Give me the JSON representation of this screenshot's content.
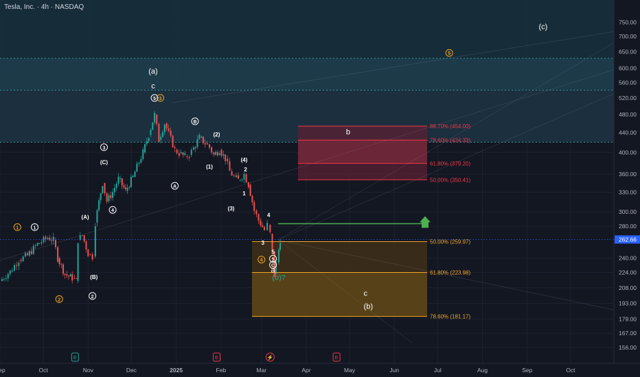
{
  "header": {
    "title": "Tesla, Inc. · 4h · NASDAQ"
  },
  "chart_data": {
    "type": "candlestick",
    "symbol": "Tesla, Inc.",
    "interval": "4h",
    "exchange": "NASDAQ",
    "x_start": "2024-09-01",
    "x_end": "2025-10-31",
    "y_scale": "log",
    "y_range": [
      150,
      750
    ],
    "price_ticks": [
      750,
      700,
      650,
      600,
      560,
      520,
      480,
      440,
      400,
      360,
      330,
      300,
      280,
      240,
      224,
      208,
      193,
      179,
      167,
      156
    ],
    "month_ticks": [
      {
        "date": "2024-09-01",
        "label": "Sep"
      },
      {
        "date": "2024-10-01",
        "label": "Oct"
      },
      {
        "date": "2024-11-01",
        "label": "Nov"
      },
      {
        "date": "2024-12-01",
        "label": "Dec"
      },
      {
        "date": "2025-01-01",
        "label": "2025",
        "bold": true
      },
      {
        "date": "2025-02-01",
        "label": "Feb"
      },
      {
        "date": "2025-03-01",
        "label": "Mar"
      },
      {
        "date": "2025-04-01",
        "label": "Apr"
      },
      {
        "date": "2025-05-01",
        "label": "May"
      },
      {
        "date": "2025-06-01",
        "label": "Jun"
      },
      {
        "date": "2025-07-01",
        "label": "Jul"
      },
      {
        "date": "2025-08-01",
        "label": "Aug"
      },
      {
        "date": "2025-09-01",
        "label": "Sep"
      },
      {
        "date": "2025-10-01",
        "label": "Oct"
      }
    ],
    "current_price": {
      "value": 262.66,
      "label": "262.66",
      "color": "#2962ff"
    },
    "price_series": [
      [
        "2024-09-01",
        215
      ],
      [
        "2024-09-08",
        225
      ],
      [
        "2024-09-14",
        238
      ],
      [
        "2024-09-20",
        243
      ],
      [
        "2024-09-27",
        257
      ],
      [
        "2024-10-04",
        265
      ],
      [
        "2024-10-08",
        262
      ],
      [
        "2024-10-11",
        240
      ],
      [
        "2024-10-16",
        222
      ],
      [
        "2024-10-21",
        218
      ],
      [
        "2024-10-24",
        215
      ],
      [
        "2024-10-25",
        262
      ],
      [
        "2024-10-28",
        268
      ],
      [
        "2024-11-01",
        245
      ],
      [
        "2024-11-04",
        242
      ],
      [
        "2024-11-06",
        285
      ],
      [
        "2024-11-11",
        345
      ],
      [
        "2024-11-14",
        316
      ],
      [
        "2024-11-18",
        330
      ],
      [
        "2024-11-22",
        352
      ],
      [
        "2024-11-27",
        332
      ],
      [
        "2024-12-02",
        355
      ],
      [
        "2024-12-09",
        400
      ],
      [
        "2024-12-13",
        435
      ],
      [
        "2024-12-17",
        480
      ],
      [
        "2024-12-20",
        425
      ],
      [
        "2024-12-24",
        460
      ],
      [
        "2024-12-31",
        405
      ],
      [
        "2025-01-03",
        398
      ],
      [
        "2025-01-07",
        392
      ],
      [
        "2025-01-10",
        395
      ],
      [
        "2025-01-13",
        408
      ],
      [
        "2025-01-17",
        430
      ],
      [
        "2025-01-21",
        418
      ],
      [
        "2025-01-24",
        410
      ],
      [
        "2025-01-27",
        395
      ],
      [
        "2025-01-31",
        405
      ],
      [
        "2025-02-04",
        388
      ],
      [
        "2025-02-07",
        365
      ],
      [
        "2025-02-10",
        355
      ],
      [
        "2025-02-13",
        350
      ],
      [
        "2025-02-17",
        360
      ],
      [
        "2025-02-20",
        342
      ],
      [
        "2025-02-24",
        302
      ],
      [
        "2025-02-27",
        288
      ],
      [
        "2025-03-03",
        275
      ],
      [
        "2025-03-05",
        282
      ],
      [
        "2025-03-07",
        270
      ],
      [
        "2025-03-10",
        222
      ],
      [
        "2025-03-11",
        235
      ],
      [
        "2025-03-13",
        250
      ],
      [
        "2025-03-14",
        262.66
      ]
    ],
    "fibonacci_levels": [
      {
        "label": "88.70% (454.00)",
        "value": 454.0,
        "color": "#f23645"
      },
      {
        "label": "78.60% (424.33)",
        "value": 424.33,
        "color": "#f23645"
      },
      {
        "label": "61.80% (379.20)",
        "value": 379.2,
        "color": "#f23645"
      },
      {
        "label": "50.00% (350.41)",
        "value": 350.41,
        "color": "#f23645"
      },
      {
        "label": "50.00% (259.97)",
        "value": 259.97,
        "color": "#f5a623"
      },
      {
        "label": "61.80% (223.98)",
        "value": 223.98,
        "color": "#f5a623"
      },
      {
        "label": "78.60% (181.17)",
        "value": 181.17,
        "color": "#f5a623"
      }
    ],
    "wave_labels": [
      {
        "text": "(c)",
        "date": "2025-09-12",
        "price": 725,
        "color": "#ffffff"
      },
      {
        "text": "5",
        "date": "2025-07-09",
        "price": 640,
        "color": "#f5a623",
        "circled": true
      },
      {
        "text": "(a)",
        "date": "2024-12-16",
        "price": 585,
        "color": "#ffffff"
      },
      {
        "text": "c",
        "date": "2024-12-16",
        "price": 545,
        "color": "#ffffff"
      },
      {
        "text": "5",
        "date": "2024-12-17",
        "price": 515,
        "color": "#ffffff",
        "circled": true
      },
      {
        "text": "3",
        "date": "2024-12-21",
        "price": 515,
        "color": "#f5a623",
        "circled": true
      },
      {
        "text": "B",
        "date": "2025-01-14",
        "price": 460,
        "color": "#ffffff",
        "circled": true
      },
      {
        "text": "(2)",
        "date": "2025-01-29",
        "price": 432,
        "color": "#ffffff"
      },
      {
        "text": "3",
        "date": "2024-11-12",
        "price": 406,
        "color": "#ffffff",
        "circled": true
      },
      {
        "text": "(C)",
        "date": "2024-11-12",
        "price": 378,
        "color": "#ffffff"
      },
      {
        "text": "(1)",
        "date": "2025-01-24",
        "price": 370,
        "color": "#ffffff"
      },
      {
        "text": "(4)",
        "date": "2025-02-17",
        "price": 382,
        "color": "#ffffff"
      },
      {
        "text": "2",
        "date": "2025-02-18",
        "price": 365,
        "color": "#ffffff"
      },
      {
        "text": "A",
        "date": "2024-12-31",
        "price": 337,
        "color": "#ffffff",
        "circled": true
      },
      {
        "text": "1",
        "date": "2025-02-17",
        "price": 325,
        "color": "#ffffff"
      },
      {
        "text": "4",
        "date": "2024-11-18",
        "price": 300,
        "color": "#ffffff",
        "circled": true
      },
      {
        "text": "(3)",
        "date": "2025-02-08",
        "price": 302,
        "color": "#ffffff"
      },
      {
        "text": "4",
        "date": "2025-03-06",
        "price": 293,
        "color": "#ffffff"
      },
      {
        "text": "(A)",
        "date": "2024-10-30",
        "price": 290,
        "color": "#ffffff"
      },
      {
        "text": "1",
        "date": "2024-09-13",
        "price": 276,
        "color": "#f5a623",
        "circled": true
      },
      {
        "text": "1",
        "date": "2024-09-25",
        "price": 276,
        "color": "#ffffff",
        "circled": true
      },
      {
        "text": "3",
        "date": "2025-03-02",
        "price": 256,
        "color": "#ffffff"
      },
      {
        "text": "5",
        "date": "2025-03-09",
        "price": 245,
        "color": "#ffffff"
      },
      {
        "text": "5",
        "date": "2025-03-09",
        "price": 237,
        "color": "#ffffff",
        "circled": true
      },
      {
        "text": "4",
        "date": "2025-03-01",
        "price": 236,
        "color": "#f5a623",
        "circled": true
      },
      {
        "text": "C",
        "date": "2025-03-09",
        "price": 230,
        "color": "#ffffff",
        "circled": true
      },
      {
        "text": "a",
        "date": "2025-03-09",
        "price": 224,
        "color": "#ffffff"
      },
      {
        "text": "(b)?",
        "date": "2025-03-13",
        "price": 216,
        "color": "#26a69a"
      },
      {
        "text": "(B)",
        "date": "2024-11-05",
        "price": 217,
        "color": "#ffffff"
      },
      {
        "text": "2",
        "date": "2024-11-04",
        "price": 198,
        "color": "#ffffff",
        "circled": true
      },
      {
        "text": "2",
        "date": "2024-10-12",
        "price": 195,
        "color": "#f5a623",
        "circled": true
      },
      {
        "text": "b",
        "date": "2025-04-30",
        "price": 436,
        "color": "#ffffff"
      },
      {
        "text": "c",
        "date": "2025-05-12",
        "price": 200,
        "color": "#ffffff"
      },
      {
        "text": "(b)",
        "date": "2025-05-14",
        "price": 188,
        "color": "#ffffff"
      }
    ],
    "event_markers": [
      {
        "label": "E",
        "date": "2024-10-23",
        "color": "#26a69a"
      },
      {
        "label": "E",
        "date": "2025-01-29",
        "color": "#f23645"
      },
      {
        "label": "⚡",
        "date": "2025-03-07",
        "color": "#f23645"
      },
      {
        "label": "E",
        "date": "2025-04-22",
        "color": "#f23645"
      }
    ],
    "zones": {
      "upper_band": {
        "top": 630,
        "bottom": 540,
        "color": "#1f3e4e"
      },
      "mid_band": {
        "top": 540,
        "bottom": 420,
        "color": "#1c3040"
      },
      "red_box": {
        "date_from": "2025-03-17",
        "date_to": "2025-05-52",
        "top": 454,
        "bottom": 350.41,
        "color": "#f23645"
      },
      "orange_box": {
        "date_from": "2025-02-28",
        "date_to": "2025-05-52",
        "top": 259.97,
        "bottom": 181.17,
        "color": "#f5a623"
      },
      "green_line": {
        "price": 283.5,
        "date_from": "2025-03-09",
        "date_to": "2025-06-12",
        "color": "#4caf50"
      }
    }
  }
}
